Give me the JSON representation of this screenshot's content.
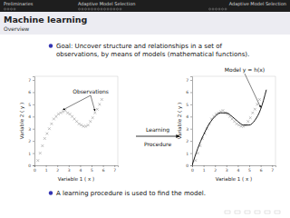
{
  "header": {
    "left": "Preliminaries",
    "middle": "Adaptive Model Selection",
    "right": "Adaptive Model Selection"
  },
  "slide": {
    "title": "Machine learning",
    "subtitle": "Overview",
    "bullets": [
      [
        "Goal: Uncover structure and relationships in a set of",
        "observations, by means of models (mathematical functions)."
      ],
      [
        "A learning procedure is used to find the model."
      ]
    ],
    "arrow_top": "Learning",
    "arrow_bottom": "Procedure"
  },
  "chart_data": [
    {
      "type": "scatter",
      "annotation": "Observations",
      "x_label": "Variable 1 ( x )",
      "y_label": "Variable 2 ( y )",
      "x": [
        0.3,
        0.5,
        0.7,
        0.9,
        1.1,
        1.3,
        1.5,
        1.7,
        1.9,
        2.1,
        2.3,
        2.5,
        2.7,
        2.9,
        3.1,
        3.3,
        3.5,
        3.7,
        3.9,
        4.1,
        4.3,
        4.5,
        4.7,
        4.9,
        5.1,
        5.3,
        5.5,
        5.7,
        5.9
      ],
      "values": [
        0.4,
        1.0,
        1.6,
        2.2,
        2.6,
        3.0,
        3.4,
        3.8,
        4.0,
        4.2,
        4.3,
        4.4,
        4.5,
        4.3,
        4.2,
        4.0,
        3.8,
        3.6,
        3.4,
        3.3,
        3.2,
        3.2,
        3.3,
        3.6,
        3.9,
        4.3,
        4.6,
        5.0,
        5.4
      ],
      "color": "#999999",
      "marker": "x",
      "xlim": [
        0,
        7.3
      ],
      "ylim": [
        0,
        7.3
      ],
      "xticks": [
        0,
        1,
        2,
        3,
        4,
        5,
        6,
        7
      ],
      "yticks": [
        0,
        1,
        2,
        3,
        4,
        5,
        6,
        7
      ]
    },
    {
      "type": "line",
      "annotation": "Model y = h(x)",
      "x_label": "Variable 1 ( x )",
      "y_label": "Variable 2 ( y )",
      "series": [
        {
          "type": "scatter",
          "color": "#999999",
          "marker": "x",
          "x": [
            0.3,
            0.5,
            0.7,
            0.9,
            1.1,
            1.3,
            1.5,
            1.7,
            1.9,
            2.1,
            2.3,
            2.5,
            2.7,
            2.9,
            3.1,
            3.3,
            3.5,
            3.7,
            3.9,
            4.1,
            4.3,
            4.5,
            4.7,
            4.9,
            5.1,
            5.3,
            5.5,
            5.7,
            5.9
          ],
          "values": [
            0.4,
            1.0,
            1.6,
            2.2,
            2.6,
            3.0,
            3.4,
            3.8,
            4.0,
            4.2,
            4.3,
            4.4,
            4.5,
            4.3,
            4.2,
            4.0,
            3.8,
            3.6,
            3.4,
            3.3,
            3.2,
            3.2,
            3.3,
            3.6,
            3.9,
            4.3,
            4.6,
            5.0,
            5.4
          ]
        },
        {
          "type": "line",
          "color": "#000000",
          "line_style": "solid",
          "x": [
            0.0,
            0.5,
            1.0,
            1.5,
            2.0,
            2.5,
            3.0,
            3.5,
            4.0,
            4.5,
            5.0,
            5.5,
            6.0,
            6.5
          ],
          "values": [
            0.0,
            1.4,
            2.5,
            3.4,
            4.0,
            4.3,
            4.3,
            4.0,
            3.6,
            3.3,
            3.3,
            3.7,
            4.6,
            6.2
          ]
        }
      ],
      "xlim": [
        0,
        7.3
      ],
      "ylim": [
        0,
        7.3
      ],
      "xticks": [
        0,
        1,
        2,
        3,
        4,
        5,
        6,
        7
      ],
      "yticks": [
        0,
        1,
        2,
        3,
        4,
        5,
        6,
        7
      ]
    }
  ]
}
